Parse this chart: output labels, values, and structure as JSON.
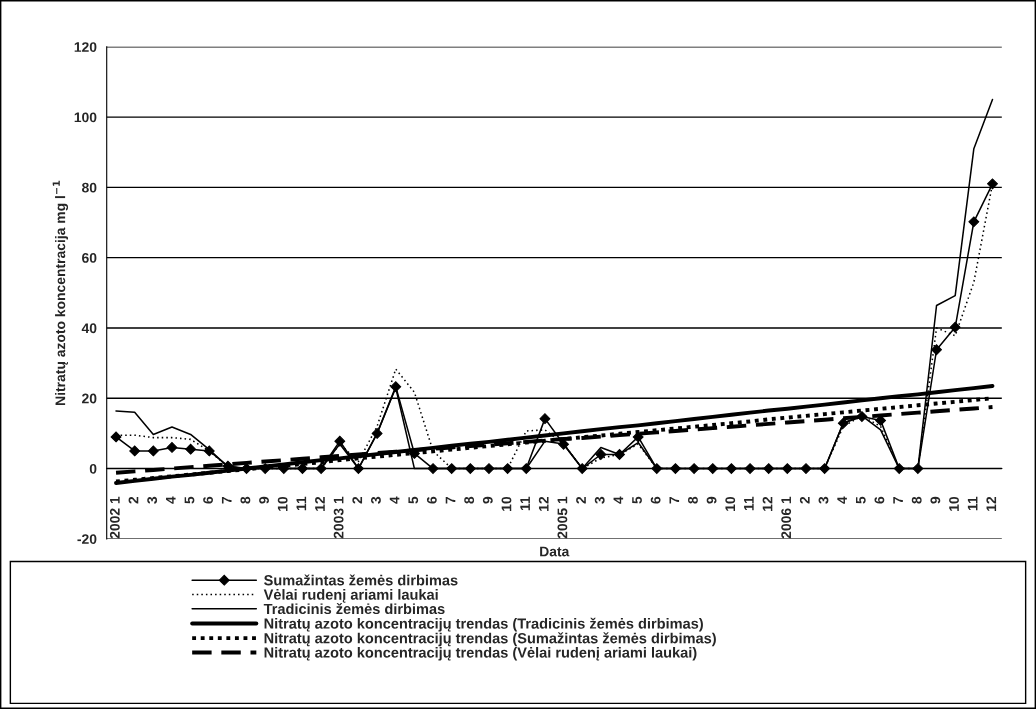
{
  "chart_data": {
    "type": "line",
    "xlabel": "Data",
    "ylabel": "Nitratų azoto koncentracija mg l$^{−1}$",
    "categories": [
      "2002 1",
      "2",
      "3",
      "4",
      "5",
      "6",
      "7",
      "8",
      "9",
      "10",
      "11",
      "12",
      "2003 1",
      "2",
      "3",
      "4",
      "5",
      "6",
      "7",
      "8",
      "9",
      "10",
      "11",
      "12",
      "2005 1",
      "2",
      "3",
      "4",
      "5",
      "6",
      "7",
      "8",
      "9",
      "10",
      "11",
      "12",
      "2006 1",
      "2",
      "3",
      "4",
      "5",
      "6",
      "7",
      "8",
      "9",
      "10",
      "11",
      "12"
    ],
    "ylim": [
      -20,
      120
    ],
    "yticks": [
      -20,
      0,
      20,
      40,
      60,
      80,
      100,
      120
    ],
    "grid": "y",
    "legend": "bottom",
    "series": [
      {
        "name": "Sumažintas žemės dirbimas",
        "color": "#000000",
        "marker": "diamond",
        "line_style": "solid",
        "values": [
          9,
          5,
          5,
          6,
          5.5,
          5,
          0.7,
          0,
          0,
          0,
          0,
          0,
          7.8,
          0,
          10,
          23.3,
          4.3,
          0,
          0,
          0,
          0,
          0,
          0,
          14.2,
          6.9,
          0,
          4,
          4,
          9,
          0,
          0,
          0,
          0,
          0,
          0,
          0,
          0,
          0,
          0,
          12.9,
          14.8,
          13.7,
          0,
          0,
          33.8,
          40.2,
          70.2,
          81
        ]
      },
      {
        "name": "Vėlai rudenį ariami laukai",
        "color": "#000000",
        "line_style": "dotted",
        "values": [
          9.5,
          9.5,
          8.8,
          8.8,
          8.3,
          5,
          0.5,
          0,
          0,
          0,
          0,
          0,
          7,
          2,
          12,
          28.3,
          21.7,
          5,
          0,
          0,
          0,
          0,
          10.7,
          11,
          7,
          0,
          3,
          4,
          7,
          0,
          0,
          0,
          0,
          0,
          0,
          0,
          0,
          0,
          0,
          12,
          15,
          12,
          0,
          0,
          40,
          37.8,
          53,
          81
        ]
      },
      {
        "name": "Tradicinis žemės dirbimas",
        "color": "#000000",
        "line_style": "solid",
        "values": [
          16.4,
          16,
          9.7,
          11.8,
          9.7,
          5.4,
          0.5,
          0,
          0,
          0,
          0,
          0,
          7,
          0,
          10,
          23,
          0,
          0,
          0,
          0,
          0,
          0,
          0,
          7.8,
          7,
          0,
          6,
          4,
          7.4,
          0,
          0,
          0,
          0,
          0,
          0,
          0,
          0,
          0,
          0,
          13,
          15,
          11,
          0,
          0,
          46.4,
          49.2,
          91,
          105
        ]
      },
      {
        "name": "Nitratų azoto koncentracijų trendas (Tradicinis žemės dirbimas)",
        "type": "line",
        "color": "#000000",
        "line_style": "solid",
        "values": [
          -4.1,
          -3.5,
          -2.9,
          -2.3,
          -1.8,
          -1.2,
          -0.6,
          0.0,
          0.6,
          1.2,
          1.8,
          2.4,
          2.9,
          3.5,
          4.1,
          4.7,
          5.3,
          5.9,
          6.5,
          7.1,
          7.6,
          8.2,
          8.8,
          9.4,
          10.0,
          10.6,
          11.2,
          11.8,
          12.3,
          12.9,
          13.5,
          14.1,
          14.7,
          15.3,
          15.9,
          16.5,
          17.0,
          17.6,
          18.2,
          18.8,
          19.4,
          20.0,
          20.6,
          21.1,
          21.7,
          22.3,
          22.9,
          23.5
        ]
      },
      {
        "name": "Nitratų azoto koncentracijų trendas (Sumažintas žemės dirbimas)",
        "type": "line",
        "color": "#000000",
        "line_style": "dotted",
        "values": [
          -3.7,
          -3.2,
          -2.7,
          -2.2,
          -1.7,
          -1.2,
          -0.7,
          -0.2,
          0.3,
          0.8,
          1.3,
          1.8,
          2.4,
          2.9,
          3.4,
          3.9,
          4.4,
          4.9,
          5.4,
          5.9,
          6.4,
          6.9,
          7.4,
          7.9,
          8.4,
          8.9,
          9.4,
          9.9,
          10.4,
          10.9,
          11.4,
          11.9,
          12.4,
          12.9,
          13.4,
          14.0,
          14.5,
          15.0,
          15.5,
          16.0,
          16.5,
          17.0,
          17.5,
          18.0,
          18.5,
          19.0,
          19.5,
          20.0
        ]
      },
      {
        "name": "Nitratų azoto koncentracijų trendas (Vėlai rudenį ariami laukai)",
        "type": "line",
        "color": "#000000",
        "line_style": "dashed",
        "values": [
          -1.2,
          -0.8,
          -0.4,
          0.0,
          0.4,
          0.8,
          1.2,
          1.6,
          2.0,
          2.4,
          2.8,
          3.2,
          3.6,
          4.0,
          4.4,
          4.8,
          5.2,
          5.6,
          6.0,
          6.4,
          6.8,
          7.2,
          7.6,
          8.0,
          8.4,
          8.7,
          9.1,
          9.5,
          9.9,
          10.3,
          10.7,
          11.1,
          11.5,
          11.9,
          12.3,
          12.7,
          13.1,
          13.5,
          13.9,
          14.3,
          14.7,
          15.1,
          15.5,
          15.9,
          16.3,
          16.7,
          17.1,
          17.5
        ]
      }
    ]
  }
}
